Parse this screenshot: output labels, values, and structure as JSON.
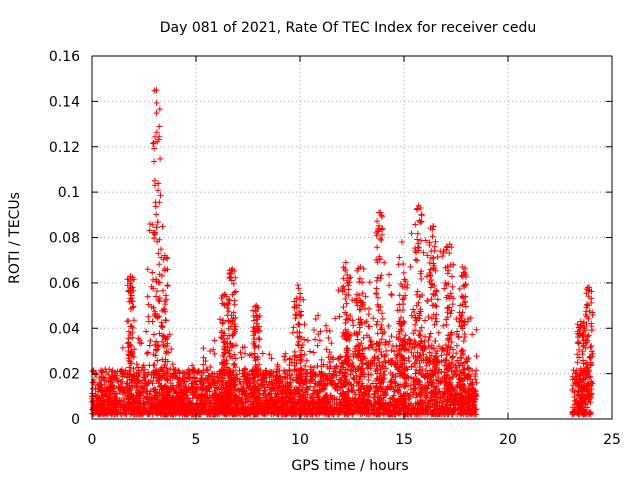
{
  "chart_data": {
    "type": "scatter",
    "title": "Day 081 of 2021, Rate Of TEC Index for receiver cedu",
    "xlabel": "GPS time / hours",
    "ylabel": "ROTI / TECUs",
    "xlim": [
      0,
      25
    ],
    "ylim": [
      0,
      0.16
    ],
    "xticks": [
      "0",
      "5",
      "10",
      "15",
      "20",
      "25"
    ],
    "yticks": [
      "0",
      "0.02",
      "0.04",
      "0.06",
      "0.08",
      "0.1",
      "0.12",
      "0.14",
      "0.16"
    ],
    "grid": true,
    "marker": "+",
    "color": "#ff0000",
    "series": [
      {
        "envelope": {
          "x": [
            0,
            0.5,
            1.0,
            1.5,
            1.8,
            2.0,
            2.5,
            3.0,
            3.2,
            3.5,
            4.0,
            4.5,
            5.0,
            5.5,
            6.0,
            6.5,
            6.8,
            7.0,
            7.5,
            8.0,
            8.5,
            9.0,
            9.5,
            10.0,
            10.5,
            11.0,
            11.5,
            12.0,
            12.5,
            13.0,
            13.5,
            14.0,
            14.5,
            15.0,
            15.5,
            16.0,
            16.5,
            17.0,
            17.5,
            18.0,
            18.5
          ],
          "y": [
            0.012,
            0.014,
            0.015,
            0.03,
            0.063,
            0.045,
            0.035,
            0.125,
            0.145,
            0.06,
            0.02,
            0.015,
            0.025,
            0.03,
            0.035,
            0.055,
            0.066,
            0.04,
            0.025,
            0.05,
            0.025,
            0.025,
            0.03,
            0.058,
            0.04,
            0.045,
            0.04,
            0.068,
            0.065,
            0.06,
            0.06,
            0.091,
            0.07,
            0.078,
            0.08,
            0.094,
            0.07,
            0.085,
            0.078,
            0.065,
            0.035
          ]
        },
        "bursts": [
          {
            "x": 1.85,
            "peak": 0.063
          },
          {
            "x": 3.1,
            "peak": 0.145
          },
          {
            "x": 3.5,
            "peak": 0.072
          },
          {
            "x": 6.4,
            "peak": 0.055
          },
          {
            "x": 6.75,
            "peak": 0.066
          },
          {
            "x": 7.9,
            "peak": 0.05
          },
          {
            "x": 9.9,
            "peak": 0.059
          },
          {
            "x": 12.2,
            "peak": 0.069
          },
          {
            "x": 12.9,
            "peak": 0.067
          },
          {
            "x": 13.8,
            "peak": 0.091
          },
          {
            "x": 14.9,
            "peak": 0.078
          },
          {
            "x": 15.7,
            "peak": 0.094
          },
          {
            "x": 16.4,
            "peak": 0.085
          },
          {
            "x": 17.2,
            "peak": 0.077
          },
          {
            "x": 17.8,
            "peak": 0.067
          },
          {
            "x": 23.5,
            "peak": 0.043
          },
          {
            "x": 23.9,
            "peak": 0.058
          }
        ],
        "segments": [
          [
            0,
            18.5
          ],
          [
            23.1,
            24.0
          ]
        ]
      }
    ]
  }
}
